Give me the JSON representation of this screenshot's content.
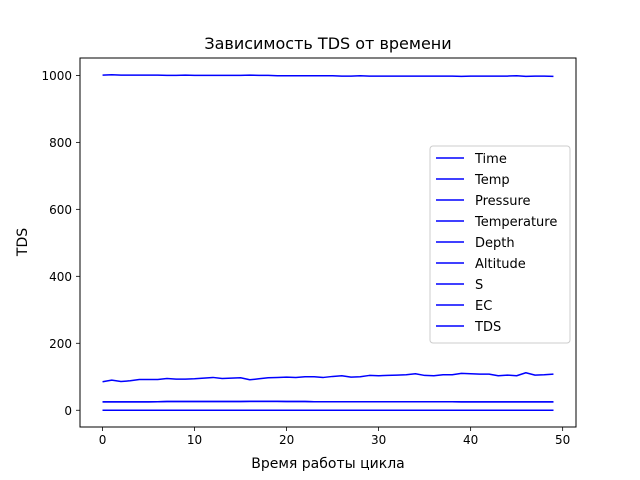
{
  "chart_data": {
    "type": "line",
    "title": "Зависимость TDS от времени",
    "xlabel": "Время работы цикла",
    "ylabel": "TDS",
    "xlim": [
      -2.45,
      51.45
    ],
    "ylim": [
      -50,
      1052
    ],
    "xticks": [
      0,
      10,
      20,
      30,
      40,
      50
    ],
    "yticks": [
      0,
      200,
      400,
      600,
      800,
      1000
    ],
    "grid": false,
    "legend_position": "center-right",
    "line_color": "#0000ff",
    "x": [
      0,
      1,
      2,
      3,
      4,
      5,
      6,
      7,
      8,
      9,
      10,
      11,
      12,
      13,
      14,
      15,
      16,
      17,
      18,
      19,
      20,
      21,
      22,
      23,
      24,
      25,
      26,
      27,
      28,
      29,
      30,
      31,
      32,
      33,
      34,
      35,
      36,
      37,
      38,
      39,
      40,
      41,
      42,
      43,
      44,
      45,
      46,
      47,
      48,
      49
    ],
    "series": [
      {
        "name": "Time",
        "values": [
          0,
          0,
          0,
          0,
          0,
          0,
          0,
          0,
          0,
          0,
          0,
          0,
          0,
          0,
          0,
          0,
          0,
          0,
          0,
          0,
          0,
          0,
          0,
          0,
          0,
          0,
          0,
          0,
          0,
          0,
          0,
          0,
          0,
          0,
          0,
          0,
          0,
          0,
          0,
          0,
          0,
          0,
          0,
          0,
          0,
          0,
          0,
          0,
          0,
          0
        ]
      },
      {
        "name": "Temp",
        "values": [
          25,
          25,
          25,
          25,
          25,
          25,
          25.5,
          26,
          26,
          26,
          26,
          26,
          26,
          26,
          26,
          26,
          26.5,
          26.5,
          26.5,
          26.5,
          26,
          26,
          26,
          25.5,
          25.5,
          25.5,
          25.5,
          25.5,
          25.5,
          25.5,
          25.5,
          25.5,
          25.5,
          25.5,
          25.5,
          25.5,
          25.5,
          25.5,
          25.5,
          25,
          25,
          25,
          25,
          25,
          25,
          25,
          25,
          25,
          25,
          25
        ]
      },
      {
        "name": "Pressure",
        "values": [
          1001,
          1002,
          1001,
          1001,
          1001,
          1001,
          1001,
          1000,
          1000,
          1001,
          1000,
          1000,
          1000,
          1000,
          1000,
          1000,
          1001,
          1000,
          1000,
          999,
          999,
          999,
          999,
          999,
          999,
          999,
          998,
          998,
          999,
          998,
          998,
          998,
          998,
          998,
          998,
          998,
          998,
          998,
          998,
          997,
          998,
          998,
          998,
          998,
          998,
          999,
          997,
          998,
          998,
          997
        ]
      },
      {
        "name": "Temperature",
        "values": [
          25,
          25,
          25,
          25,
          25,
          25,
          25.5,
          26,
          26,
          26,
          26,
          26,
          26,
          26,
          26,
          26,
          26.5,
          26.5,
          26.5,
          26.5,
          26,
          26,
          26,
          25.5,
          25.5,
          25.5,
          25.5,
          25.5,
          25.5,
          25.5,
          25.5,
          25.5,
          25.5,
          25.5,
          25.5,
          25.5,
          25.5,
          25.5,
          25.5,
          25,
          25,
          25,
          25,
          25,
          25,
          25,
          25,
          25,
          25,
          25
        ]
      },
      {
        "name": "Depth",
        "values": [
          0,
          0,
          0,
          0,
          0,
          0,
          0,
          0,
          0,
          0,
          0,
          0,
          0,
          0,
          0,
          0,
          0,
          0,
          0,
          0,
          0,
          0,
          0,
          0,
          0,
          0,
          0,
          0,
          0,
          0,
          0,
          0,
          0,
          0,
          0,
          0,
          0,
          0,
          0,
          0,
          0,
          0,
          0,
          0,
          0,
          0,
          0,
          0,
          0,
          0
        ]
      },
      {
        "name": "Altitude",
        "values": [
          0,
          0,
          0,
          0,
          0,
          0,
          0,
          0,
          0,
          0,
          0,
          0,
          0,
          0,
          0,
          0,
          0,
          0,
          0,
          0,
          0,
          0,
          0,
          0,
          0,
          0,
          0,
          0,
          0,
          0,
          0,
          0,
          0,
          0,
          0,
          0,
          0,
          0,
          0,
          0,
          0,
          0,
          0,
          0,
          0,
          0,
          0,
          0,
          0,
          0
        ]
      },
      {
        "name": "S",
        "values": [
          0,
          0,
          0,
          0,
          0,
          0,
          0,
          0,
          0,
          0,
          0,
          0,
          0,
          0,
          0,
          0,
          0,
          0,
          0,
          0,
          0,
          0,
          0,
          0,
          0,
          0,
          0,
          0,
          0,
          0,
          0,
          0,
          0,
          0,
          0,
          0,
          0,
          0,
          0,
          0,
          0,
          0,
          0,
          0,
          0,
          0,
          0,
          0,
          0,
          0
        ]
      },
      {
        "name": "EC",
        "values": [
          0,
          0,
          0,
          0,
          0,
          0,
          0,
          0,
          0,
          0,
          0,
          0,
          0,
          0,
          0,
          0,
          0,
          0,
          0,
          0,
          0,
          0,
          0,
          0,
          0,
          0,
          0,
          0,
          0,
          0,
          0,
          0,
          0,
          0,
          0,
          0,
          0,
          0,
          0,
          0,
          0,
          0,
          0,
          0,
          0,
          0,
          0,
          0,
          0,
          0
        ]
      },
      {
        "name": "TDS",
        "values": [
          85,
          90,
          86,
          88,
          92,
          92,
          92,
          95,
          93,
          93,
          94,
          96,
          98,
          95,
          96,
          97,
          91,
          94,
          97,
          98,
          99,
          98,
          100,
          100,
          98,
          101,
          103,
          99,
          100,
          104,
          103,
          104,
          105,
          106,
          109,
          104,
          103,
          106,
          106,
          110,
          109,
          108,
          108,
          103,
          105,
          103,
          112,
          105,
          106,
          108
        ]
      }
    ]
  }
}
